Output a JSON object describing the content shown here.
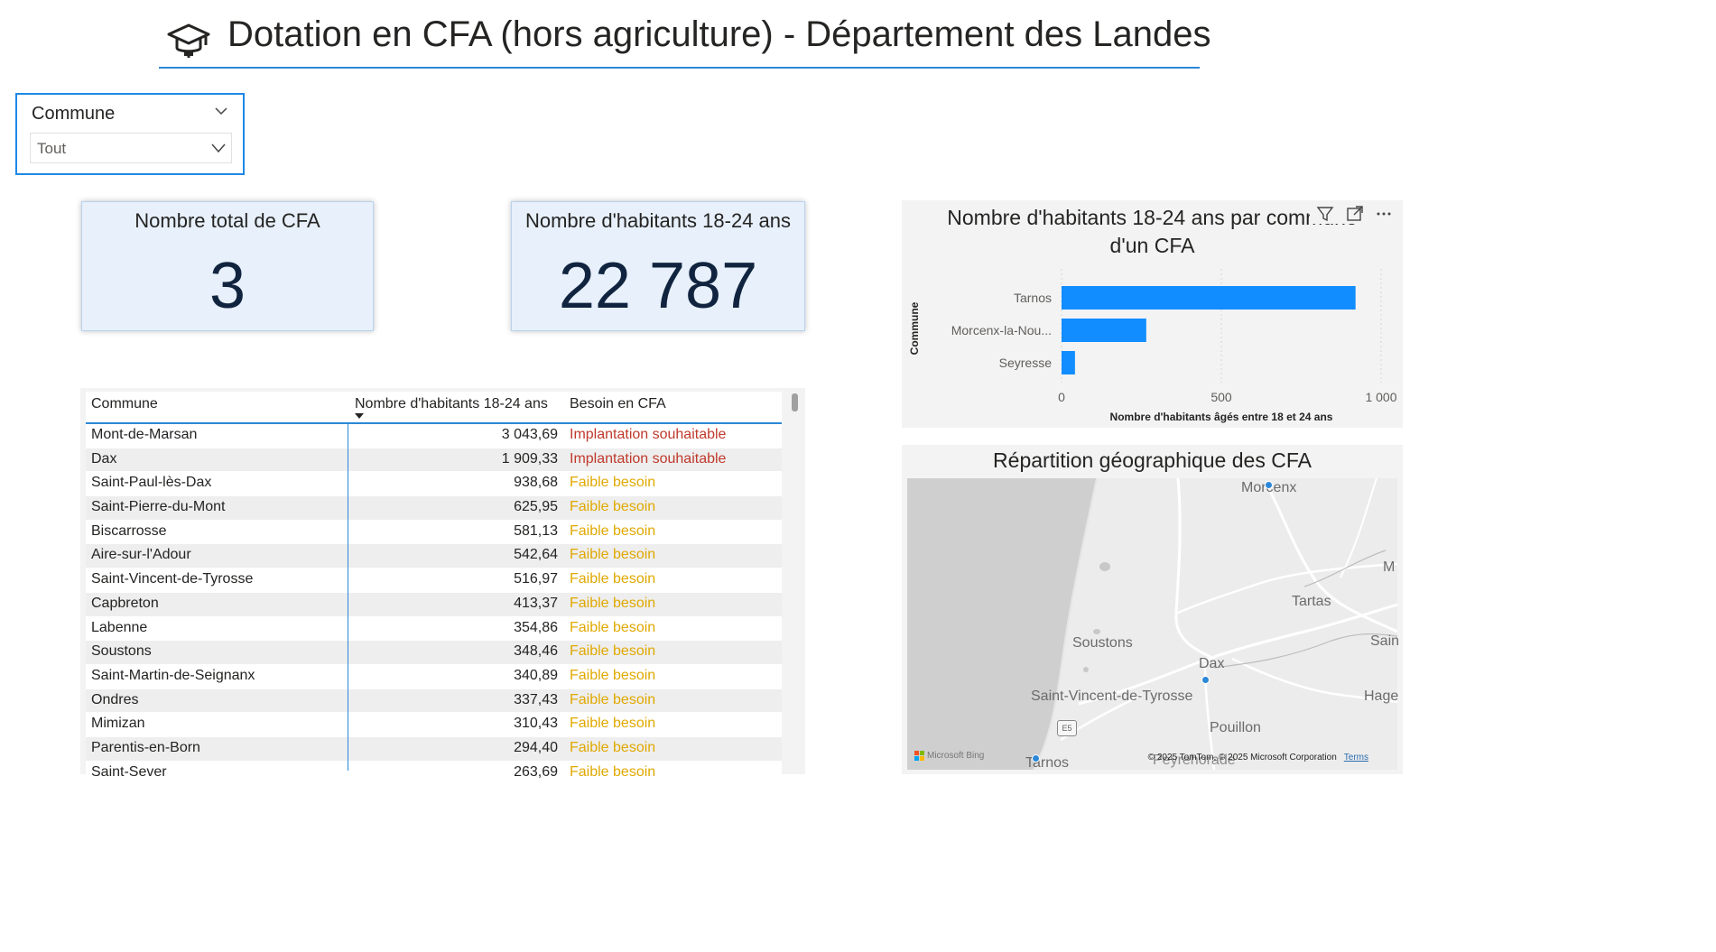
{
  "title": "Dotation en CFA (hors agriculture) - Département des Landes",
  "title_icon": "graduation-cap-icon",
  "slicer": {
    "label": "Commune",
    "value": "Tout"
  },
  "kpis": {
    "total_cfa": {
      "title": "Nombre total de CFA",
      "value": "3"
    },
    "habitants": {
      "title": "Nombre d'habitants 18-24 ans",
      "value": "22 787"
    }
  },
  "table": {
    "headers": {
      "commune": "Commune",
      "habitants": "Nombre d'habitants 18-24 ans",
      "besoin": "Besoin en CFA"
    },
    "colors": {
      "implantation": "#c0392b",
      "faible": "#e0a800"
    },
    "rows": [
      {
        "commune": "Mont-de-Marsan",
        "habitants": "3 043,69",
        "besoin": "Implantation souhaitable",
        "level": "implantation"
      },
      {
        "commune": "Dax",
        "habitants": "1 909,33",
        "besoin": "Implantation souhaitable",
        "level": "implantation"
      },
      {
        "commune": "Saint-Paul-lès-Dax",
        "habitants": "938,68",
        "besoin": "Faible besoin",
        "level": "faible"
      },
      {
        "commune": "Saint-Pierre-du-Mont",
        "habitants": "625,95",
        "besoin": "Faible besoin",
        "level": "faible"
      },
      {
        "commune": "Biscarrosse",
        "habitants": "581,13",
        "besoin": "Faible besoin",
        "level": "faible"
      },
      {
        "commune": "Aire-sur-l'Adour",
        "habitants": "542,64",
        "besoin": "Faible besoin",
        "level": "faible"
      },
      {
        "commune": "Saint-Vincent-de-Tyrosse",
        "habitants": "516,97",
        "besoin": "Faible besoin",
        "level": "faible"
      },
      {
        "commune": "Capbreton",
        "habitants": "413,37",
        "besoin": "Faible besoin",
        "level": "faible"
      },
      {
        "commune": "Labenne",
        "habitants": "354,86",
        "besoin": "Faible besoin",
        "level": "faible"
      },
      {
        "commune": "Soustons",
        "habitants": "348,46",
        "besoin": "Faible besoin",
        "level": "faible"
      },
      {
        "commune": "Saint-Martin-de-Seignanx",
        "habitants": "340,89",
        "besoin": "Faible besoin",
        "level": "faible"
      },
      {
        "commune": "Ondres",
        "habitants": "337,43",
        "besoin": "Faible besoin",
        "level": "faible"
      },
      {
        "commune": "Mimizan",
        "habitants": "310,43",
        "besoin": "Faible besoin",
        "level": "faible"
      },
      {
        "commune": "Parentis-en-Born",
        "habitants": "294,40",
        "besoin": "Faible besoin",
        "level": "faible"
      },
      {
        "commune": "Saint-Sever",
        "habitants": "263,69",
        "besoin": "Faible besoin",
        "level": "faible"
      }
    ]
  },
  "bar_visual": {
    "header_icons": [
      "filter-icon",
      "focus-mode-icon",
      "more-options-icon"
    ]
  },
  "chart_data": {
    "type": "bar",
    "orientation": "horizontal",
    "title": "Nombre d'habitants 18-24 ans par commune dotée d'un CFA",
    "title_visible": "Nombre d'habitants 18-24 ans par commune",
    "title_line2": "d'un CFA",
    "categories": [
      "Tarnos",
      "Morcenx-la-Nou...",
      "Seyresse"
    ],
    "values": [
      920,
      265,
      42
    ],
    "xlabel": "Nombre d'habitants âgés entre 18 et 24 ans",
    "ylabel": "Commune",
    "xlim": [
      0,
      1000
    ],
    "xticks": [
      0,
      500,
      1000
    ],
    "xtick_labels": [
      "0",
      "500",
      "1 000"
    ],
    "bar_color": "#118dff",
    "grid": true
  },
  "map": {
    "title": "Répartition géographique des CFA",
    "labels": [
      "Morcenx",
      "Tartas",
      "Soustons",
      "Dax",
      "Saint-Vincent-de-Tyrosse",
      "Pouillon",
      "Tarnos",
      "Peyrehorade",
      "Hage",
      "Sain",
      "M"
    ],
    "road_shield": "E5",
    "bing": "Microsoft Bing",
    "copyright": "© 2025 TomTom, © 2025 Microsoft Corporation",
    "terms": "Terms"
  }
}
